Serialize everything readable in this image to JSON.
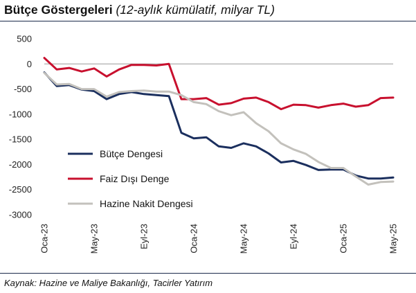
{
  "header": {
    "title": "Bütçe Göstergeleri",
    "subtitle": "(12-aylık kümülatif, milyar TL)"
  },
  "footer": {
    "source": "Kaynak: Hazine ve Maliye Bakanlığı, Tacirler Yatırım"
  },
  "chart_data": {
    "type": "line",
    "title": "Bütçe Göstergeleri",
    "subtitle": "(12-aylık kümülatif, milyar TL)",
    "xlabel": "",
    "ylabel": "",
    "ylim": [
      -3000,
      500
    ],
    "yticks": [
      500,
      0,
      -500,
      -1000,
      -1500,
      -2000,
      -2500,
      -3000
    ],
    "x": [
      "Oca-23",
      "Şub-23",
      "Mar-23",
      "Nis-23",
      "May-23",
      "Haz-23",
      "Tem-23",
      "Ağu-23",
      "Eyl-23",
      "Eki-23",
      "Kas-23",
      "Ara-23",
      "Oca-24",
      "Şub-24",
      "Mar-24",
      "Nis-24",
      "May-24",
      "Haz-24",
      "Tem-24",
      "Ağu-24",
      "Eyl-24",
      "Eki-24",
      "Kas-24",
      "Ara-24",
      "Oca-25",
      "Şub-25",
      "Mar-25",
      "Nis-25",
      "May-25"
    ],
    "xtick_labels": [
      "Oca-23",
      "May-23",
      "Eyl-23",
      "Oca-24",
      "May-24",
      "Eyl-24",
      "Oca-25",
      "May-25"
    ],
    "xtick_indices": [
      0,
      4,
      8,
      12,
      16,
      20,
      24,
      28
    ],
    "grid": false,
    "legend_position": "left",
    "series": [
      {
        "name": "Bütçe Dengesi",
        "color": "#1b2f5e",
        "values": [
          -170,
          -440,
          -420,
          -510,
          -540,
          -700,
          -600,
          -560,
          -600,
          -620,
          -640,
          -1370,
          -1480,
          -1460,
          -1640,
          -1670,
          -1580,
          -1640,
          -1780,
          -1960,
          -1930,
          -2010,
          -2110,
          -2100,
          -2100,
          -2220,
          -2280,
          -2280,
          -2260
        ]
      },
      {
        "name": "Faiz Dışı Denge",
        "color": "#c8102e",
        "values": [
          120,
          -110,
          -80,
          -150,
          -90,
          -250,
          -110,
          -20,
          -20,
          -30,
          0,
          -700,
          -700,
          -680,
          -810,
          -780,
          -690,
          -670,
          -760,
          -900,
          -810,
          -820,
          -870,
          -820,
          -790,
          -850,
          -820,
          -680,
          -670
        ]
      },
      {
        "name": "Hazine Nakit Dengesi",
        "color": "#c3c1bc",
        "values": [
          -180,
          -410,
          -400,
          -500,
          -500,
          -650,
          -560,
          -540,
          -530,
          -550,
          -550,
          -620,
          -760,
          -800,
          -940,
          -1020,
          -960,
          -1180,
          -1340,
          -1580,
          -1700,
          -1790,
          -1950,
          -2070,
          -2070,
          -2240,
          -2400,
          -2350,
          -2340
        ]
      }
    ]
  }
}
